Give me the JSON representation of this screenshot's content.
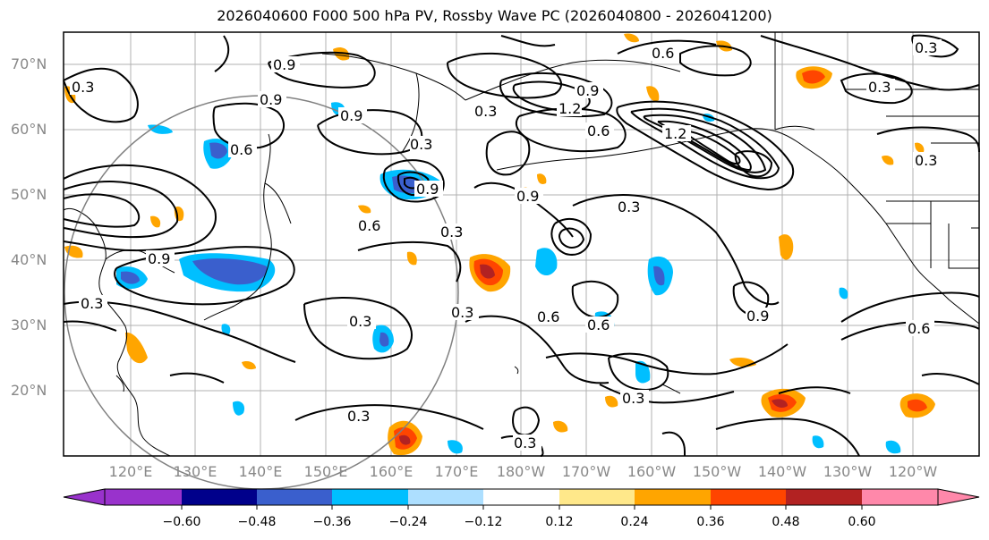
{
  "title": "2026040600 F000 500 hPa PV, Rossby Wave PC (2026040800 - 2026041200)",
  "lat_labels": [
    "70°N",
    "60°N",
    "50°N",
    "40°N",
    "30°N",
    "20°N"
  ],
  "lon_labels": [
    "120°E",
    "130°E",
    "140°E",
    "150°E",
    "160°E",
    "170°E",
    "180°W",
    "170°W",
    "160°W",
    "150°W",
    "140°W",
    "130°W",
    "120°W"
  ],
  "contour_labels": [
    "0.3",
    "0.6",
    "0.9",
    "1.2"
  ],
  "colorbar": {
    "ticks": [
      "−0.60",
      "−0.48",
      "−0.36",
      "−0.24",
      "−0.12",
      "0.12",
      "0.24",
      "0.36",
      "0.48",
      "0.60"
    ],
    "colors": [
      "#9932CC",
      "#00008B",
      "#3A5FCD",
      "#00BFFF",
      "#ADDFFF",
      "#FFFFFF",
      "#FFE88A",
      "#FFA500",
      "#FF4500",
      "#B22222",
      "#FF88AA"
    ]
  }
}
